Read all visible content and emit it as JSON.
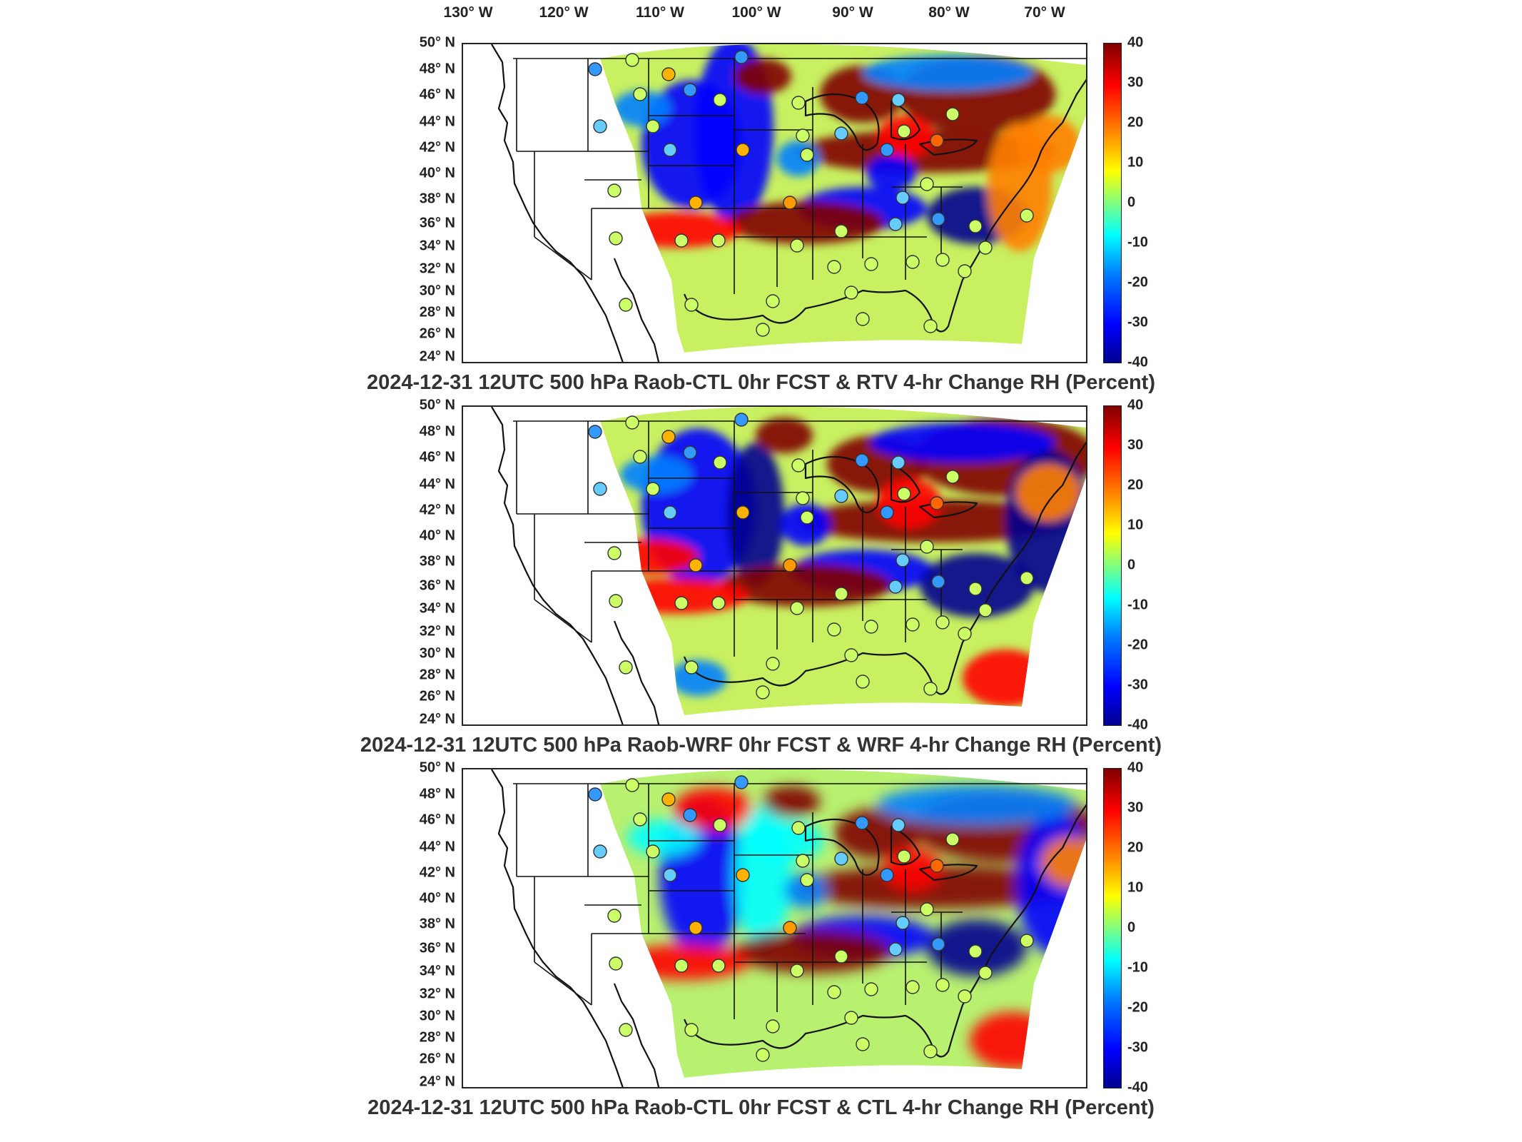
{
  "longitude_labels": [
    "130° W",
    "120° W",
    "110° W",
    "100° W",
    "90° W",
    "80° W",
    "70° W"
  ],
  "latitude_labels": [
    "50° N",
    "48° N",
    "46° N",
    "44° N",
    "42° N",
    "40° N",
    "38° N",
    "36° N",
    "34° N",
    "32° N",
    "30° N",
    "28° N",
    "26° N",
    "24° N"
  ],
  "colorbar": {
    "ticks": [
      "40",
      "30",
      "20",
      "10",
      "0",
      "-10",
      "-20",
      "-30",
      "-40"
    ],
    "colors": [
      "#00008f",
      "#0000ff",
      "#0080ff",
      "#00ffff",
      "#80ff80",
      "#ffff00",
      "#ff8000",
      "#ff0000",
      "#800000"
    ]
  },
  "panels": [
    {
      "title": "2024-12-31 12UTC 500 hPa Raob-CTL 0hr FCST & RTV 4-hr Change RH (Percent)"
    },
    {
      "title": "2024-12-31 12UTC 500 hPa Raob-WRF 0hr FCST & WRF 4-hr Change RH (Percent)"
    },
    {
      "title": "2024-12-31 12UTC 500 hPa Raob-CTL 0hr FCST & CTL 4-hr Change RH (Percent)"
    }
  ]
}
